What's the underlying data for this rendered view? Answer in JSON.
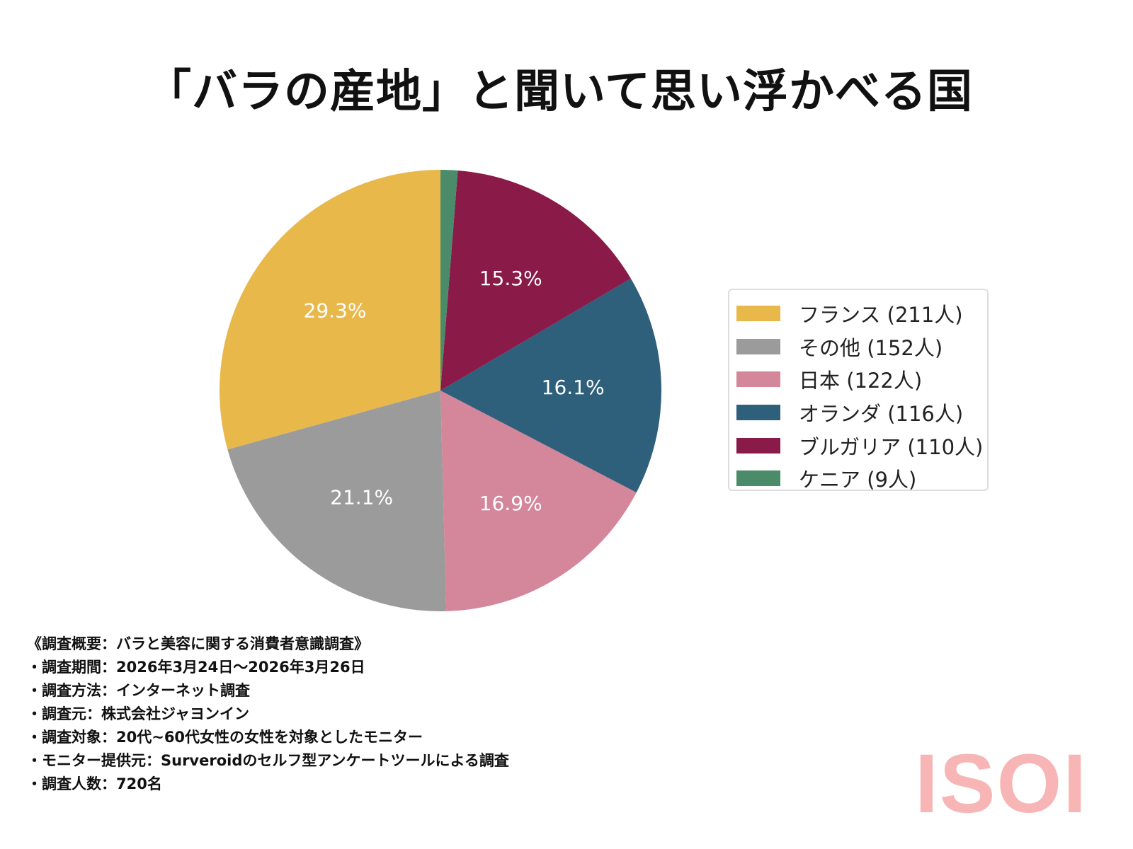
{
  "chart_data": {
    "type": "pie",
    "title": "「バラの産地」と聞いて思い浮かべる国",
    "start_angle_deg": 90,
    "direction": "counterclockwise",
    "slices": [
      {
        "label": "フランス (211人)",
        "value": 211,
        "pct_label": "29.3%",
        "color": "#e8b84a"
      },
      {
        "label": "その他 (152人)",
        "value": 152,
        "pct_label": "21.1%",
        "color": "#9b9b9b"
      },
      {
        "label": "日本 (122人)",
        "value": 122,
        "pct_label": "16.9%",
        "color": "#d4869b"
      },
      {
        "label": "オランダ (116人)",
        "value": 116,
        "pct_label": "16.1%",
        "color": "#2e5f7b"
      },
      {
        "label": "ブルガリア (110人)",
        "value": 110,
        "pct_label": "15.3%",
        "color": "#8a1a48"
      },
      {
        "label": "ケニア (9人)",
        "value": 9,
        "pct_label": "",
        "color": "#4a8c6a"
      }
    ],
    "legend_position": "right"
  },
  "notes": [
    "《調査概要：バラと美容に関する消費者意識調査》",
    "・調査期間：2026年3月24日～2026年3月26日",
    "・調査方法：インターネット調査",
    "・調査元：株式会社ジャヨンイン",
    "・調査対象：20代~60代女性の女性を対象としたモニター",
    "・モニター提供元：Surveroidのセルフ型アンケートツールによる調査",
    "・調査人数：720名"
  ],
  "logo": "ISOI"
}
